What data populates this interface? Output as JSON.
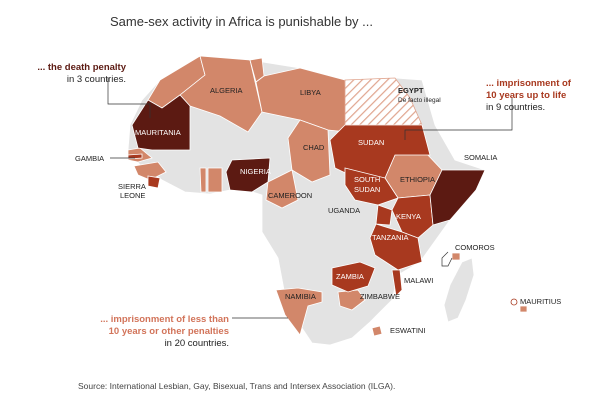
{
  "title": "Same-sex activity in Africa is punishable by ...",
  "colors": {
    "death": "#5c1a12",
    "long": "#a8391f",
    "short": "#d2876a",
    "legal": "#e3e3e3",
    "border": "#ffffff"
  },
  "legend": {
    "death": {
      "highlight": "... the death penalty",
      "rest": "in 3 countries."
    },
    "long": {
      "highlight_1": "... imprisonment of",
      "highlight_2": "10 years up to life",
      "rest": "in 9 countries."
    },
    "short": {
      "highlight_1": "... imprisonment of less than",
      "highlight_2": "10 years or other penalties",
      "rest": "in 20 countries."
    }
  },
  "labels": {
    "algeria": "ALGERIA",
    "libya": "LIBYA",
    "egypt": "EGYPT",
    "egypt_note": "De facto illegal",
    "mauritania": "MAURITANIA",
    "gambia": "GAMBIA",
    "sierra_leone_1": "SIERRA",
    "sierra_leone_2": "LEONE",
    "chad": "CHAD",
    "sudan": "SUDAN",
    "south_sudan_1": "SOUTH",
    "south_sudan_2": "SUDAN",
    "ethiopia": "ETHIOPIA",
    "somalia": "SOMALIA",
    "nigeria": "NIGERIA",
    "cameroon": "CAMEROON",
    "uganda": "UGANDA",
    "kenya": "KENYA",
    "tanzania": "TANZANIA",
    "comoros": "COMOROS",
    "zambia": "ZAMBIA",
    "malawi": "MALAWI",
    "zimbabwe": "ZIMBABWE",
    "namibia": "NAMIBIA",
    "mauritius": "MAURITIUS",
    "eswatini": "ESWATINI"
  },
  "source": "Source: International Lesbian, Gay, Bisexual, Trans and Intersex Association (ILGA)."
}
